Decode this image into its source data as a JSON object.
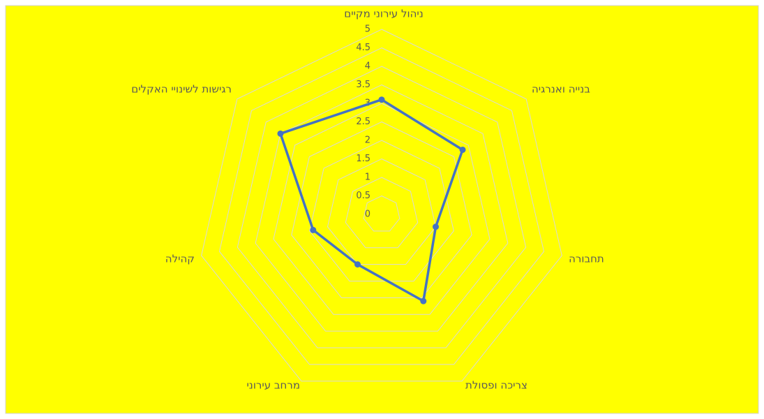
{
  "chart_data": {
    "type": "radar",
    "categories": [
      "ניהול עירוני מקיים",
      "בנייה ואנרגיה",
      "תחבורה",
      "צריכה ופסולת",
      "מרחב עירוני",
      "קהילה",
      "רגישות לשינויי האקלים"
    ],
    "values": [
      3.1,
      2.8,
      1.5,
      2.6,
      1.5,
      1.9,
      3.5
    ],
    "color": "#4472c4",
    "ylim": [
      0,
      5
    ],
    "yticks": [
      0,
      0.5,
      1,
      1.5,
      2,
      2.5,
      3,
      3.5,
      4,
      4.5,
      5
    ],
    "grid": true
  }
}
